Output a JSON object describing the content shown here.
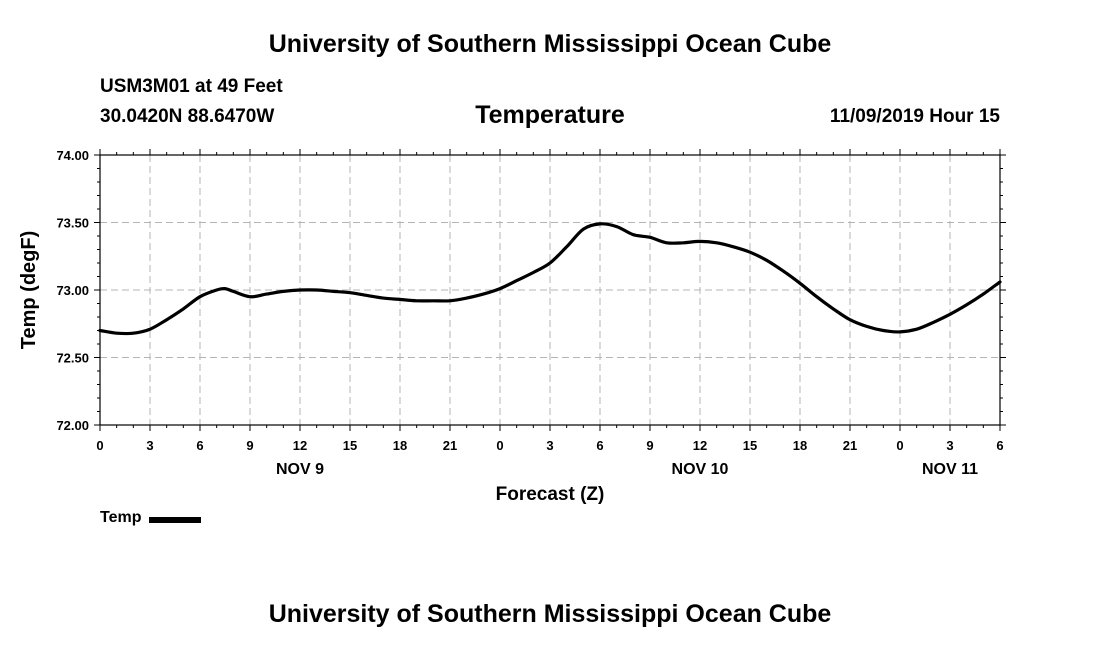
{
  "header": {
    "title_top": "University of Southern Mississippi Ocean Cube",
    "station": "USM3M01 at 49 Feet",
    "coords": "30.0420N 88.6470W",
    "datetime": "11/09/2019 Hour 15"
  },
  "footer": {
    "title_bottom": "University of Southern Mississippi Ocean Cube"
  },
  "colors": {
    "line": "#000000",
    "grid": "#b4b4b4"
  },
  "chart_data": {
    "type": "line",
    "title": "Temperature",
    "xlabel": "Forecast (Z)",
    "ylabel": "Temp (degF)",
    "ylim": [
      72.0,
      74.0
    ],
    "yticks": [
      "72.00",
      "72.50",
      "73.00",
      "73.50",
      "74.00"
    ],
    "xlim": [
      0,
      54
    ],
    "xtick_labels": [
      "0",
      "3",
      "6",
      "9",
      "12",
      "15",
      "18",
      "21",
      "0",
      "3",
      "6",
      "9",
      "12",
      "15",
      "18",
      "21",
      "0",
      "3",
      "6"
    ],
    "date_labels": [
      {
        "label": "NOV 9",
        "at": 12
      },
      {
        "label": "NOV 10",
        "at": 36
      },
      {
        "label": "NOV 11",
        "at": 51
      }
    ],
    "grid": true,
    "legend": "bottom-left",
    "series": [
      {
        "name": "Temp",
        "x": [
          0,
          1,
          2,
          3,
          4,
          5,
          6,
          7,
          7.5,
          8,
          9,
          10,
          11,
          12,
          13,
          14,
          15,
          16,
          17,
          18,
          19,
          20,
          21,
          22,
          23,
          24,
          25,
          26,
          27,
          28,
          29,
          30,
          31,
          32,
          33,
          34,
          35,
          36,
          37,
          38,
          39,
          40,
          41,
          42,
          43,
          44,
          45,
          46,
          47,
          48,
          49,
          50,
          51,
          52,
          53,
          54
        ],
        "y": [
          72.7,
          72.68,
          72.68,
          72.71,
          72.78,
          72.86,
          72.95,
          73.0,
          73.01,
          72.99,
          72.95,
          72.97,
          72.99,
          73.0,
          73.0,
          72.99,
          72.98,
          72.96,
          72.94,
          72.93,
          72.92,
          72.92,
          72.92,
          72.94,
          72.97,
          73.01,
          73.07,
          73.13,
          73.2,
          73.32,
          73.45,
          73.49,
          73.47,
          73.41,
          73.39,
          73.35,
          73.35,
          73.36,
          73.35,
          73.32,
          73.28,
          73.22,
          73.14,
          73.05,
          72.95,
          72.86,
          72.78,
          72.73,
          72.7,
          72.69,
          72.71,
          72.76,
          72.82,
          72.89,
          72.97,
          73.06
        ]
      }
    ]
  }
}
